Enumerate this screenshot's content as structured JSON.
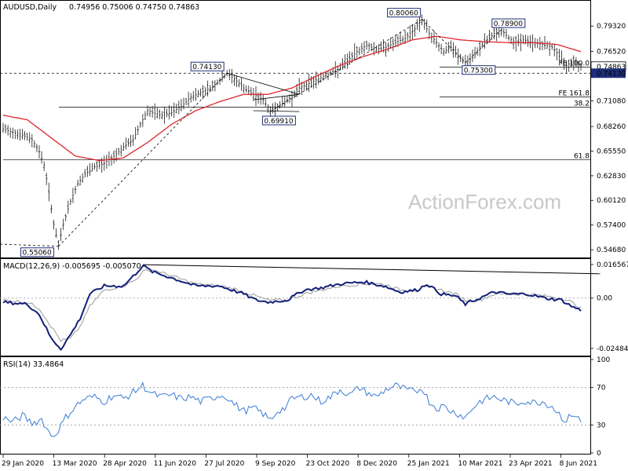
{
  "watermark": "ActionForex.com",
  "chart_data": [
    {
      "type": "candlestick",
      "title": "AUDUSD,Daily",
      "ohlc": "0.74956 0.75006 0.74750 0.74863",
      "ylim": [
        0.54,
        0.815
      ],
      "y_ticks": [
        0.5468,
        0.574,
        0.6012,
        0.6283,
        0.6555,
        0.6826,
        0.7108,
        0.738,
        0.7652,
        0.7932
      ],
      "y_tick_labels": [
        "0.54680",
        "0.57400",
        "0.60120",
        "0.62830",
        "0.65550",
        "0.68260",
        "0.71080",
        "0.73800",
        "0.76520",
        "0.79320"
      ],
      "x_labels": [
        "29 Jan 2020",
        "13 Mar 2020",
        "28 Apr 2020",
        "11 Jun 2020",
        "27 Jul 2020",
        "9 Sep 2020",
        "23 Oct 2020",
        "8 Dec 2020",
        "25 Jan 2021",
        "10 Mar 2021",
        "23 Apr 2021",
        "8 Jun 2021"
      ],
      "price_path": [
        [
          0,
          0.68
        ],
        [
          3,
          0.677
        ],
        [
          6,
          0.675
        ],
        [
          9,
          0.672
        ],
        [
          12,
          0.668
        ],
        [
          15,
          0.655
        ],
        [
          17,
          0.64
        ],
        [
          19,
          0.61
        ],
        [
          21,
          0.575
        ],
        [
          23,
          0.551
        ],
        [
          25,
          0.575
        ],
        [
          28,
          0.6
        ],
        [
          31,
          0.62
        ],
        [
          34,
          0.63
        ],
        [
          38,
          0.638
        ],
        [
          42,
          0.642
        ],
        [
          46,
          0.65
        ],
        [
          50,
          0.66
        ],
        [
          54,
          0.668
        ],
        [
          58,
          0.69
        ],
        [
          60,
          0.7
        ],
        [
          63,
          0.697
        ],
        [
          66,
          0.695
        ],
        [
          70,
          0.698
        ],
        [
          74,
          0.705
        ],
        [
          78,
          0.715
        ],
        [
          82,
          0.72
        ],
        [
          86,
          0.725
        ],
        [
          90,
          0.733
        ],
        [
          93,
          0.741
        ],
        [
          96,
          0.735
        ],
        [
          100,
          0.725
        ],
        [
          104,
          0.718
        ],
        [
          108,
          0.712
        ],
        [
          111,
          0.699
        ],
        [
          114,
          0.705
        ],
        [
          117,
          0.71
        ],
        [
          120,
          0.715
        ],
        [
          123,
          0.725
        ],
        [
          127,
          0.73
        ],
        [
          131,
          0.735
        ],
        [
          135,
          0.74
        ],
        [
          139,
          0.745
        ],
        [
          143,
          0.755
        ],
        [
          147,
          0.765
        ],
        [
          151,
          0.772
        ],
        [
          155,
          0.768
        ],
        [
          159,
          0.77
        ],
        [
          163,
          0.775
        ],
        [
          167,
          0.78
        ],
        [
          171,
          0.79
        ],
        [
          174,
          0.8006
        ],
        [
          177,
          0.785
        ],
        [
          180,
          0.775
        ],
        [
          183,
          0.765
        ],
        [
          186,
          0.77
        ],
        [
          189,
          0.76
        ],
        [
          192,
          0.753
        ],
        [
          195,
          0.758
        ],
        [
          198,
          0.77
        ],
        [
          201,
          0.778
        ],
        [
          204,
          0.785
        ],
        [
          207,
          0.789
        ],
        [
          210,
          0.78
        ],
        [
          213,
          0.775
        ],
        [
          216,
          0.778
        ],
        [
          220,
          0.775
        ],
        [
          224,
          0.773
        ],
        [
          228,
          0.77
        ],
        [
          231,
          0.76
        ],
        [
          234,
          0.75
        ],
        [
          237,
          0.755
        ],
        [
          240,
          0.7486
        ]
      ],
      "ma_path": [
        [
          0,
          0.695
        ],
        [
          10,
          0.69
        ],
        [
          20,
          0.67
        ],
        [
          30,
          0.65
        ],
        [
          40,
          0.645
        ],
        [
          50,
          0.648
        ],
        [
          60,
          0.665
        ],
        [
          70,
          0.685
        ],
        [
          80,
          0.7
        ],
        [
          90,
          0.71
        ],
        [
          100,
          0.718
        ],
        [
          110,
          0.718
        ],
        [
          120,
          0.725
        ],
        [
          130,
          0.738
        ],
        [
          140,
          0.75
        ],
        [
          150,
          0.76
        ],
        [
          160,
          0.768
        ],
        [
          170,
          0.778
        ],
        [
          180,
          0.782
        ],
        [
          190,
          0.778
        ],
        [
          200,
          0.776
        ],
        [
          210,
          0.775
        ],
        [
          220,
          0.775
        ],
        [
          230,
          0.773
        ],
        [
          240,
          0.765
        ]
      ],
      "annotations": [
        {
          "text": "0.55060",
          "x": 23,
          "y": 0.5506
        },
        {
          "text": "0.74130",
          "x": 93,
          "y": 0.7413
        },
        {
          "text": "0.69910",
          "x": 111,
          "y": 0.6991
        },
        {
          "text": "0.80060",
          "x": 174,
          "y": 0.8006
        },
        {
          "text": "0.75300",
          "x": 192,
          "y": 0.753
        },
        {
          "text": "0.78900",
          "x": 207,
          "y": 0.789
        }
      ],
      "levels": [
        {
          "label": "FE 100.0",
          "value": 0.748
        },
        {
          "label": "FE 161.8",
          "value": 0.715
        },
        {
          "label": "38.2",
          "value": 0.704
        },
        {
          "label": "61.8",
          "value": 0.646
        }
      ],
      "dashed_level": 0.7413,
      "current_price": "0.74863",
      "current_value": 0.74863,
      "level_label": "0.74130"
    },
    {
      "type": "line",
      "title": "MACD(12,26,9) -0.005695 -0.005070",
      "ylim": [
        -0.028,
        0.0185
      ],
      "y_ticks": [
        0.016567,
        0.0,
        -0.02484
      ],
      "y_tick_labels": [
        "0.016567",
        "0.00",
        "-0.02484"
      ],
      "series": [
        {
          "values": [
            [
              0,
              -0.002
            ],
            [
              10,
              -0.003
            ],
            [
              15,
              -0.008
            ],
            [
              20,
              -0.02
            ],
            [
              24,
              -0.025
            ],
            [
              28,
              -0.018
            ],
            [
              32,
              -0.01
            ],
            [
              36,
              0.002
            ],
            [
              42,
              0.006
            ],
            [
              50,
              0.006
            ],
            [
              55,
              0.012
            ],
            [
              58,
              0.016
            ],
            [
              62,
              0.013
            ],
            [
              70,
              0.01
            ],
            [
              80,
              0.006
            ],
            [
              90,
              0.006
            ],
            [
              95,
              0.004
            ],
            [
              100,
              0.002
            ],
            [
              105,
              -0.001
            ],
            [
              110,
              -0.002
            ],
            [
              118,
              -0.001
            ],
            [
              125,
              0.004
            ],
            [
              132,
              0.005
            ],
            [
              140,
              0.007
            ],
            [
              150,
              0.008
            ],
            [
              158,
              0.006
            ],
            [
              165,
              0.003
            ],
            [
              172,
              0.004
            ],
            [
              176,
              0.007
            ],
            [
              182,
              0.002
            ],
            [
              188,
              0.001
            ],
            [
              192,
              -0.003
            ],
            [
              198,
              0.0
            ],
            [
              204,
              0.003
            ],
            [
              210,
              0.002
            ],
            [
              218,
              0.002
            ],
            [
              225,
              0.0
            ],
            [
              232,
              -0.001
            ],
            [
              236,
              -0.004
            ],
            [
              240,
              -0.006
            ]
          ]
        },
        {
          "values": [
            [
              0,
              -0.001
            ],
            [
              10,
              -0.002
            ],
            [
              15,
              -0.005
            ],
            [
              20,
              -0.014
            ],
            [
              24,
              -0.021
            ],
            [
              28,
              -0.02
            ],
            [
              32,
              -0.014
            ],
            [
              36,
              -0.004
            ],
            [
              42,
              0.004
            ],
            [
              50,
              0.006
            ],
            [
              55,
              0.009
            ],
            [
              58,
              0.013
            ],
            [
              62,
              0.014
            ],
            [
              70,
              0.011
            ],
            [
              80,
              0.007
            ],
            [
              90,
              0.006
            ],
            [
              95,
              0.005
            ],
            [
              100,
              0.003
            ],
            [
              105,
              0.001
            ],
            [
              110,
              -0.001
            ],
            [
              118,
              -0.001
            ],
            [
              125,
              0.002
            ],
            [
              132,
              0.004
            ],
            [
              140,
              0.006
            ],
            [
              150,
              0.007
            ],
            [
              158,
              0.007
            ],
            [
              165,
              0.004
            ],
            [
              172,
              0.004
            ],
            [
              176,
              0.006
            ],
            [
              182,
              0.004
            ],
            [
              188,
              0.002
            ],
            [
              192,
              -0.001
            ],
            [
              198,
              -0.001
            ],
            [
              204,
              0.002
            ],
            [
              210,
              0.002
            ],
            [
              218,
              0.002
            ],
            [
              225,
              0.001
            ],
            [
              232,
              0.0
            ],
            [
              236,
              -0.002
            ],
            [
              240,
              -0.005
            ]
          ]
        }
      ],
      "trendline": [
        [
          58,
          0.0165
        ],
        [
          248,
          0.012
        ]
      ]
    },
    {
      "type": "line",
      "title": "RSI(14) 33.4864",
      "ylim": [
        0,
        100
      ],
      "y_ticks": [
        100,
        70,
        30,
        0
      ],
      "y_tick_labels": [
        "100",
        "70",
        "30",
        "0"
      ],
      "series": [
        {
          "values": [
            [
              0,
              38
            ],
            [
              4,
              33
            ],
            [
              8,
              40
            ],
            [
              12,
              32
            ],
            [
              16,
              36
            ],
            [
              19,
              22
            ],
            [
              21,
              18
            ],
            [
              23,
              25
            ],
            [
              26,
              38
            ],
            [
              30,
              50
            ],
            [
              34,
              58
            ],
            [
              38,
              60
            ],
            [
              42,
              55
            ],
            [
              46,
              62
            ],
            [
              50,
              58
            ],
            [
              54,
              65
            ],
            [
              58,
              72
            ],
            [
              62,
              63
            ],
            [
              66,
              60
            ],
            [
              70,
              62
            ],
            [
              74,
              58
            ],
            [
              78,
              60
            ],
            [
              82,
              55
            ],
            [
              86,
              58
            ],
            [
              90,
              62
            ],
            [
              93,
              60
            ],
            [
              96,
              52
            ],
            [
              100,
              45
            ],
            [
              104,
              48
            ],
            [
              108,
              42
            ],
            [
              111,
              35
            ],
            [
              114,
              45
            ],
            [
              117,
              48
            ],
            [
              120,
              58
            ],
            [
              124,
              60
            ],
            [
              128,
              62
            ],
            [
              132,
              55
            ],
            [
              136,
              60
            ],
            [
              140,
              68
            ],
            [
              144,
              62
            ],
            [
              148,
              70
            ],
            [
              151,
              65
            ],
            [
              155,
              60
            ],
            [
              159,
              68
            ],
            [
              163,
              72
            ],
            [
              167,
              68
            ],
            [
              171,
              65
            ],
            [
              174,
              70
            ],
            [
              177,
              55
            ],
            [
              180,
              48
            ],
            [
              183,
              50
            ],
            [
              186,
              45
            ],
            [
              189,
              42
            ],
            [
              192,
              38
            ],
            [
              195,
              48
            ],
            [
              198,
              55
            ],
            [
              201,
              58
            ],
            [
              204,
              60
            ],
            [
              207,
              57
            ],
            [
              210,
              55
            ],
            [
              213,
              52
            ],
            [
              216,
              56
            ],
            [
              220,
              54
            ],
            [
              224,
              55
            ],
            [
              228,
              50
            ],
            [
              231,
              42
            ],
            [
              234,
              33
            ],
            [
              236,
              42
            ],
            [
              238,
              40
            ],
            [
              240,
              33
            ]
          ]
        }
      ]
    }
  ]
}
